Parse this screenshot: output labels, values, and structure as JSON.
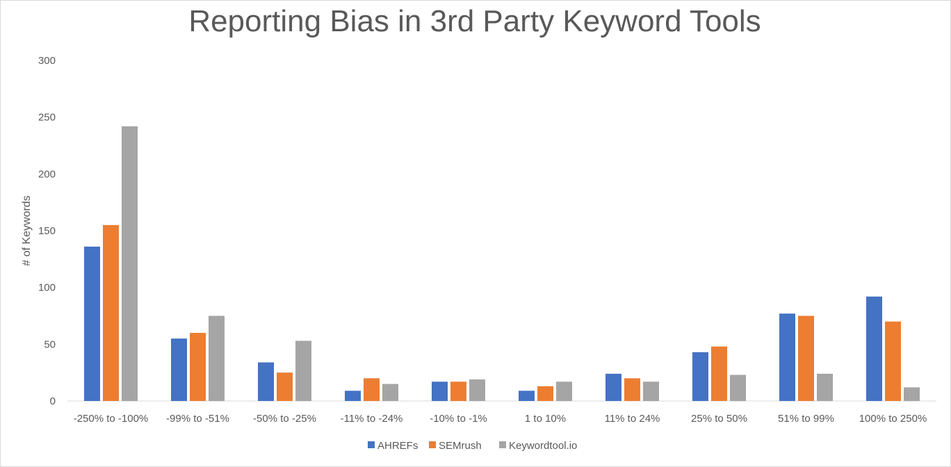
{
  "chart_data": {
    "type": "bar",
    "title": "Reporting Bias in 3rd Party Keyword Tools",
    "xlabel": "",
    "ylabel": "# of Keywords",
    "ylim": [
      0,
      300
    ],
    "yticks": [
      0,
      50,
      100,
      150,
      200,
      250,
      300
    ],
    "grid": false,
    "legend_position": "bottom",
    "categories": [
      "-250% to -100%",
      "-99% to -51%",
      "-50% to -25%",
      "-11% to -24%",
      "-10% to -1%",
      "1 to 10%",
      "11% to 24%",
      "25% to 50%",
      "51% to 99%",
      "100% to 250%"
    ],
    "series": [
      {
        "name": "AHREFs",
        "color": "#4472c4",
        "values": [
          136,
          55,
          34,
          9,
          17,
          9,
          24,
          43,
          77,
          92
        ]
      },
      {
        "name": "SEMrush",
        "color": "#ed7d31",
        "values": [
          155,
          60,
          25,
          20,
          17,
          13,
          20,
          48,
          75,
          70
        ]
      },
      {
        "name": "Keywordtool.io",
        "color": "#a5a5a5",
        "values": [
          242,
          75,
          53,
          15,
          19,
          17,
          17,
          23,
          24,
          12
        ]
      }
    ]
  }
}
